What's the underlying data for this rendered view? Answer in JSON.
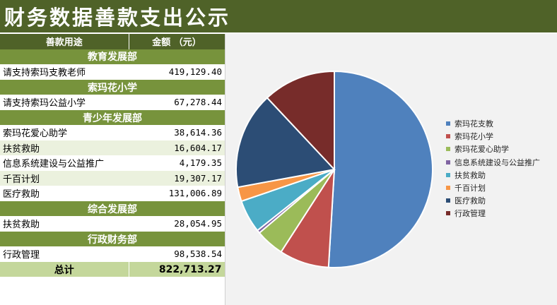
{
  "title": "财务数据善款支出公示",
  "table": {
    "header": {
      "desc": "善款用途",
      "amount": "金额 （元）"
    },
    "rows": [
      {
        "type": "section",
        "label": "教育发展部"
      },
      {
        "type": "item",
        "desc": "请支持索玛支教老师",
        "amount": "419,129.40"
      },
      {
        "type": "section",
        "label": "索玛花小学"
      },
      {
        "type": "item",
        "desc": "请支持索玛公益小学",
        "amount": "67,278.44"
      },
      {
        "type": "section",
        "label": "青少年发展部"
      },
      {
        "type": "item",
        "desc": "索玛花爱心助学",
        "amount": "38,614.36"
      },
      {
        "type": "item",
        "desc": "扶贫救助",
        "amount": "16,604.17"
      },
      {
        "type": "item",
        "desc": "信息系统建设与公益推广",
        "amount": "4,179.35"
      },
      {
        "type": "item",
        "desc": "千百计划",
        "amount": "19,307.17"
      },
      {
        "type": "item",
        "desc": "医疗救助",
        "amount": "131,006.89"
      },
      {
        "type": "section",
        "label": "综合发展部"
      },
      {
        "type": "item",
        "desc": "扶贫救助",
        "amount": "28,054.95"
      },
      {
        "type": "section",
        "label": "行政财务部"
      },
      {
        "type": "item",
        "desc": "行政管理",
        "amount": "98,538.54"
      }
    ],
    "total": {
      "label": "总计",
      "amount": "822,713.27"
    }
  },
  "chart_data": {
    "type": "pie",
    "title": "",
    "legend_position": "right",
    "categories": [
      "索玛花支教",
      "索玛花小学",
      "索玛花爱心助学",
      "信息系统建设与公益推广",
      "扶贫救助",
      "千百计划",
      "医疗救助",
      "行政管理"
    ],
    "values": [
      419129.4,
      67278.44,
      38614.36,
      4179.35,
      44659.12,
      19307.17,
      131006.89,
      98538.54
    ],
    "colors": [
      "#4f81bd",
      "#c0504d",
      "#9bbb59",
      "#8064a2",
      "#4bacc6",
      "#f79646",
      "#2c4d75",
      "#772c2a"
    ]
  },
  "colors": {
    "title_bg": "#4f6228",
    "section_bg": "#77933c",
    "row_shade": "#ebf1de",
    "total_bg": "#c4d79b",
    "chart_bg": "#f2f2f2"
  }
}
